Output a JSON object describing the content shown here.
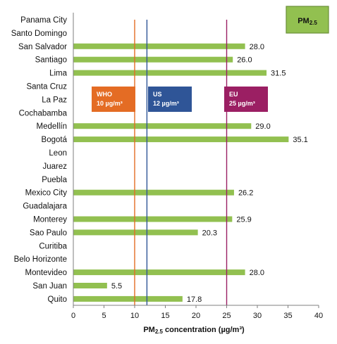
{
  "chart_data": {
    "type": "bar",
    "orientation": "horizontal",
    "badge": {
      "label": "PM",
      "sub": "2.5"
    },
    "xlabel": {
      "prefix": "PM",
      "sub": "2.5",
      "suffix": " concentration (µg/m³)"
    },
    "xlim": [
      0,
      40
    ],
    "xticks": [
      "0",
      "5",
      "10",
      "15",
      "20",
      "25",
      "30",
      "35",
      "40"
    ],
    "bar_color": "#92c050",
    "categories": [
      "Panama City",
      "Santo Domingo",
      "San Salvador",
      "Santiago",
      "Lima",
      "Santa Cruz",
      "La Paz",
      "Cochabamba",
      "Medellín",
      "Bogotá",
      "Leon",
      "Juarez",
      "Puebla",
      "Mexico City",
      "Guadalajara",
      "Monterey",
      "Sao Paulo",
      "Curitiba",
      "Belo Horizonte",
      "Montevideo",
      "San Juan",
      "Quito"
    ],
    "values": [
      null,
      null,
      28.0,
      26.0,
      31.5,
      null,
      null,
      null,
      29.0,
      35.1,
      null,
      null,
      null,
      26.2,
      null,
      25.9,
      20.3,
      null,
      null,
      28.0,
      5.5,
      17.8
    ],
    "value_labels": [
      "",
      "",
      "28.0",
      "26.0",
      "31.5",
      "",
      "",
      "",
      "29.0",
      "35.1",
      "",
      "",
      "",
      "26.2",
      "",
      "25.9",
      "20.3",
      "",
      "",
      "28.0",
      "5.5",
      "17.8"
    ],
    "reference_lines": [
      {
        "value": 10,
        "name": "WHO",
        "text": "10 µg/m³",
        "color": "#e46c24"
      },
      {
        "value": 12,
        "name": "US",
        "text": "12 µg/m³",
        "color": "#2f5597"
      },
      {
        "value": 25,
        "name": "EU",
        "text": "25 µg/m³",
        "color": "#9b1f63"
      }
    ]
  }
}
